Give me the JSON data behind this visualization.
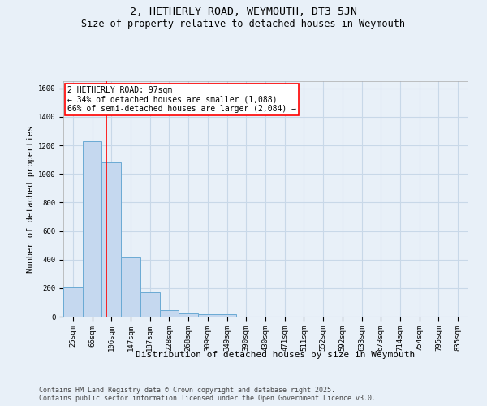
{
  "title": "2, HETHERLY ROAD, WEYMOUTH, DT3 5JN",
  "subtitle": "Size of property relative to detached houses in Weymouth",
  "xlabel": "Distribution of detached houses by size in Weymouth",
  "ylabel": "Number of detached properties",
  "bin_labels": [
    "25sqm",
    "66sqm",
    "106sqm",
    "147sqm",
    "187sqm",
    "228sqm",
    "268sqm",
    "309sqm",
    "349sqm",
    "390sqm",
    "430sqm",
    "471sqm",
    "511sqm",
    "552sqm",
    "592sqm",
    "633sqm",
    "673sqm",
    "714sqm",
    "754sqm",
    "795sqm",
    "835sqm"
  ],
  "bar_values": [
    205,
    1230,
    1080,
    415,
    170,
    45,
    25,
    15,
    15,
    0,
    0,
    0,
    0,
    0,
    0,
    0,
    0,
    0,
    0,
    0,
    0
  ],
  "bar_color": "#c5d8ef",
  "bar_edge_color": "#6aaad4",
  "red_line_x": 1.75,
  "annotation_text": "2 HETHERLY ROAD: 97sqm\n← 34% of detached houses are smaller (1,088)\n66% of semi-detached houses are larger (2,084) →",
  "ylim": [
    0,
    1650
  ],
  "yticks": [
    0,
    200,
    400,
    600,
    800,
    1000,
    1200,
    1400,
    1600
  ],
  "background_color": "#e8f0f8",
  "plot_bg_color": "#e8f0f8",
  "grid_color": "#c8d8e8",
  "footer_text": "Contains HM Land Registry data © Crown copyright and database right 2025.\nContains public sector information licensed under the Open Government Licence v3.0.",
  "title_fontsize": 9.5,
  "subtitle_fontsize": 8.5,
  "xlabel_fontsize": 8,
  "ylabel_fontsize": 7.5,
  "annotation_fontsize": 7,
  "footer_fontsize": 6,
  "tick_fontsize": 6.5
}
